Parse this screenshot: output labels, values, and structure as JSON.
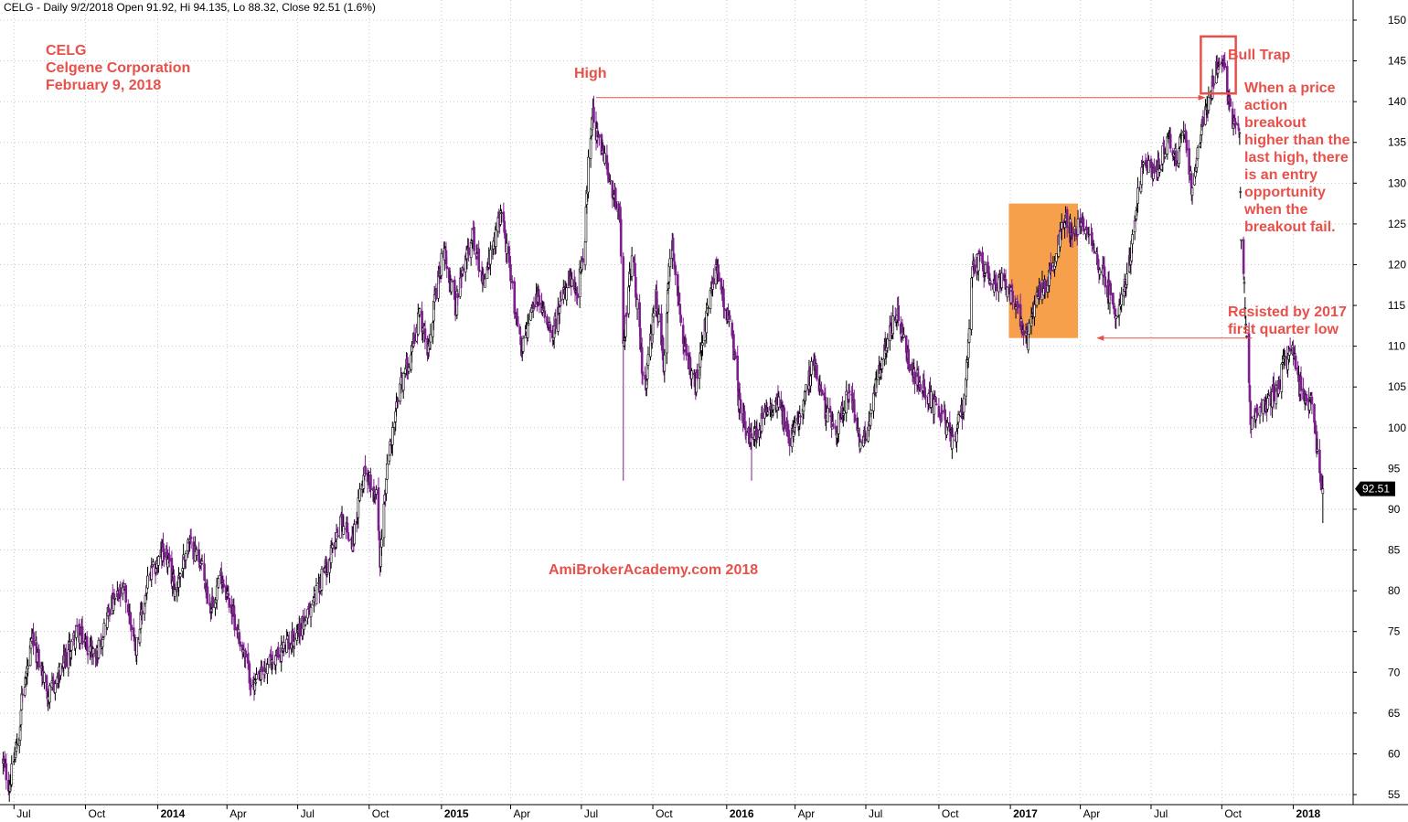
{
  "header": {
    "ticker_line": "CELG - Daily 9/2/2018 Open 91.92, Hi 94.135, Lo 88.32, Close 92.51 (1.6%)"
  },
  "info_block": {
    "line1": "CELG",
    "line2": "Celgene Corporation",
    "line3": "February 9, 2018"
  },
  "watermark": "AmiBrokerAcademy.com  2018",
  "annotations": {
    "high": "High",
    "bull_trap": "Bull Trap",
    "bull_trap_note": [
      "When a price",
      "action",
      "breakout",
      "higher than the",
      "last high, there",
      "is an entry",
      "opportunity",
      "when the",
      "breakout fail."
    ],
    "resisted": [
      "Resisted by 2017",
      "first quarter low"
    ]
  },
  "colors": {
    "annotation": "#e8504a",
    "bear_candle": "#7b1f8c",
    "bull_candle": "#000000",
    "highlight_box": "#f7a04b",
    "grid": "#c8c8c8"
  },
  "chart_data": {
    "type": "candlestick",
    "symbol": "CELG",
    "last_close_label": "92.51",
    "ylim": [
      53,
      152
    ],
    "y_ticks": [
      55,
      60,
      65,
      70,
      75,
      80,
      85,
      90,
      95,
      100,
      105,
      110,
      115,
      120,
      125,
      130,
      135,
      140,
      145,
      150
    ],
    "x_ticks": [
      {
        "label": "Jul",
        "date": "2013-07-01",
        "bold": false
      },
      {
        "label": "Oct",
        "date": "2013-10-01",
        "bold": false
      },
      {
        "label": "2014",
        "date": "2014-01-02",
        "bold": true
      },
      {
        "label": "Apr",
        "date": "2014-04-01",
        "bold": false
      },
      {
        "label": "Jul",
        "date": "2014-07-01",
        "bold": false
      },
      {
        "label": "Oct",
        "date": "2014-10-01",
        "bold": false
      },
      {
        "label": "2015",
        "date": "2015-01-02",
        "bold": true
      },
      {
        "label": "Apr",
        "date": "2015-04-01",
        "bold": false
      },
      {
        "label": "Jul",
        "date": "2015-07-01",
        "bold": false
      },
      {
        "label": "Oct",
        "date": "2015-10-01",
        "bold": false
      },
      {
        "label": "2016",
        "date": "2016-01-04",
        "bold": true
      },
      {
        "label": "Apr",
        "date": "2016-04-01",
        "bold": false
      },
      {
        "label": "Jul",
        "date": "2016-07-01",
        "bold": false
      },
      {
        "label": "Oct",
        "date": "2016-10-03",
        "bold": false
      },
      {
        "label": "2017",
        "date": "2017-01-03",
        "bold": true
      },
      {
        "label": "Apr",
        "date": "2017-04-03",
        "bold": false
      },
      {
        "label": "Jul",
        "date": "2017-07-03",
        "bold": false
      },
      {
        "label": "Oct",
        "date": "2017-10-02",
        "bold": false
      },
      {
        "label": "2018",
        "date": "2018-01-02",
        "bold": true
      }
    ],
    "price_path": [
      [
        "2013-06-17",
        59
      ],
      [
        "2013-06-25",
        56
      ],
      [
        "2013-07-08",
        63
      ],
      [
        "2013-07-10",
        66
      ],
      [
        "2013-07-25",
        74
      ],
      [
        "2013-08-15",
        67
      ],
      [
        "2013-08-30",
        70
      ],
      [
        "2013-09-20",
        75
      ],
      [
        "2013-10-15",
        72
      ],
      [
        "2013-11-01",
        78
      ],
      [
        "2013-11-20",
        80
      ],
      [
        "2013-12-05",
        73
      ],
      [
        "2013-12-20",
        81
      ],
      [
        "2014-01-10",
        85
      ],
      [
        "2014-01-25",
        80
      ],
      [
        "2014-02-10",
        86
      ],
      [
        "2014-02-25",
        84
      ],
      [
        "2014-03-10",
        78
      ],
      [
        "2014-03-25",
        82
      ],
      [
        "2014-04-15",
        75
      ],
      [
        "2014-05-05",
        68
      ],
      [
        "2014-05-25",
        71
      ],
      [
        "2014-06-15",
        73
      ],
      [
        "2014-07-15",
        77
      ],
      [
        "2014-07-25",
        80
      ],
      [
        "2014-08-15",
        85
      ],
      [
        "2014-08-25",
        89
      ],
      [
        "2014-09-10",
        86
      ],
      [
        "2014-09-25",
        95
      ],
      [
        "2014-10-10",
        92
      ],
      [
        "2014-10-15",
        84
      ],
      [
        "2014-10-25",
        96
      ],
      [
        "2014-11-10",
        105
      ],
      [
        "2014-11-20",
        108
      ],
      [
        "2014-12-05",
        114
      ],
      [
        "2014-12-15",
        110
      ],
      [
        "2015-01-05",
        122
      ],
      [
        "2015-01-20",
        115
      ],
      [
        "2015-02-10",
        124
      ],
      [
        "2015-02-25",
        118
      ],
      [
        "2015-03-10",
        122
      ],
      [
        "2015-03-20",
        127
      ],
      [
        "2015-04-01",
        118
      ],
      [
        "2015-04-15",
        110
      ],
      [
        "2015-05-05",
        116
      ],
      [
        "2015-05-25",
        112
      ],
      [
        "2015-06-15",
        118
      ],
      [
        "2015-06-25",
        116
      ],
      [
        "2015-07-05",
        122
      ],
      [
        "2015-07-10",
        132
      ],
      [
        "2015-07-15",
        139
      ],
      [
        "2015-07-20",
        136
      ],
      [
        "2015-08-05",
        131
      ],
      [
        "2015-08-20",
        126
      ],
      [
        "2015-08-24",
        110
      ],
      [
        "2015-09-05",
        122
      ],
      [
        "2015-09-20",
        104
      ],
      [
        "2015-10-05",
        116
      ],
      [
        "2015-10-15",
        108
      ],
      [
        "2015-10-25",
        124
      ],
      [
        "2015-11-10",
        110
      ],
      [
        "2015-11-25",
        105
      ],
      [
        "2015-12-10",
        114
      ],
      [
        "2015-12-20",
        120
      ],
      [
        "2016-01-10",
        112
      ],
      [
        "2016-01-20",
        103
      ],
      [
        "2016-02-05",
        98
      ],
      [
        "2016-02-20",
        101
      ],
      [
        "2016-03-10",
        104
      ],
      [
        "2016-03-25",
        98
      ],
      [
        "2016-04-10",
        103
      ],
      [
        "2016-04-25",
        108
      ],
      [
        "2016-05-10",
        102
      ],
      [
        "2016-05-25",
        100
      ],
      [
        "2016-06-10",
        105
      ],
      [
        "2016-06-25",
        97
      ],
      [
        "2016-07-10",
        103
      ],
      [
        "2016-07-25",
        110
      ],
      [
        "2016-08-10",
        114
      ],
      [
        "2016-08-25",
        108
      ],
      [
        "2016-09-10",
        105
      ],
      [
        "2016-09-25",
        103
      ],
      [
        "2016-10-10",
        101
      ],
      [
        "2016-10-20",
        98
      ],
      [
        "2016-11-05",
        103
      ],
      [
        "2016-11-15",
        119
      ],
      [
        "2016-11-25",
        121
      ],
      [
        "2016-12-10",
        117
      ],
      [
        "2016-12-25",
        118
      ],
      [
        "2017-01-10",
        115
      ],
      [
        "2017-01-20",
        112
      ],
      [
        "2017-01-25",
        111
      ],
      [
        "2017-02-05",
        116
      ],
      [
        "2017-02-20",
        118
      ],
      [
        "2017-03-05",
        122
      ],
      [
        "2017-03-15",
        126
      ],
      [
        "2017-03-25",
        124
      ],
      [
        "2017-04-05",
        125
      ],
      [
        "2017-04-20",
        122
      ],
      [
        "2017-05-05",
        118
      ],
      [
        "2017-05-20",
        114
      ],
      [
        "2017-06-05",
        120
      ],
      [
        "2017-06-15",
        128
      ],
      [
        "2017-06-25",
        133
      ],
      [
        "2017-07-10",
        131
      ],
      [
        "2017-07-25",
        136
      ],
      [
        "2017-08-05",
        133
      ],
      [
        "2017-08-15",
        137
      ],
      [
        "2017-08-25",
        129
      ],
      [
        "2017-09-05",
        136
      ],
      [
        "2017-09-15",
        140
      ],
      [
        "2017-09-25",
        144
      ],
      [
        "2017-10-03",
        146
      ],
      [
        "2017-10-10",
        140
      ],
      [
        "2017-10-18",
        137
      ],
      [
        "2017-10-25",
        136
      ],
      [
        "2017-10-27",
        122
      ],
      [
        "2017-10-30",
        119
      ],
      [
        "2017-11-08",
        101
      ],
      [
        "2017-11-20",
        102
      ],
      [
        "2017-12-05",
        104
      ],
      [
        "2017-12-15",
        105
      ],
      [
        "2017-12-20",
        108
      ],
      [
        "2018-01-02",
        109
      ],
      [
        "2018-01-10",
        105
      ],
      [
        "2018-01-20",
        103
      ],
      [
        "2018-01-26",
        104
      ],
      [
        "2018-02-02",
        97
      ],
      [
        "2018-02-09",
        92.5
      ]
    ],
    "gaps": [
      [
        "2013-07-05",
        "2013-07-06"
      ],
      [
        "2017-10-26",
        "2017-10-27"
      ],
      [
        "2017-10-31",
        "2017-11-05"
      ]
    ],
    "shaded_region": {
      "x_start": "2017-01-01",
      "x_end": "2017-03-31",
      "y_low": 111,
      "y_high": 127.5
    },
    "bull_trap_box": {
      "x_start": "2017-09-05",
      "x_end": "2017-10-20",
      "y_low": 141,
      "y_high": 148
    },
    "high_line": {
      "x_start": "2015-07-20",
      "x_end": "2017-09-10",
      "y": 140.5
    },
    "resist_line": {
      "x_start": "2017-04-25",
      "x_end": "2017-11-10",
      "y": 111
    }
  }
}
